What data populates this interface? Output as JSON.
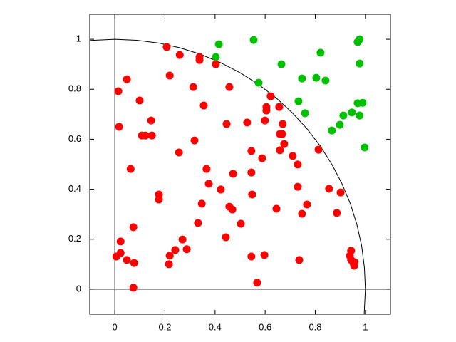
{
  "chart_data": {
    "type": "scatter",
    "xlim": [
      -0.1,
      1.1
    ],
    "ylim": [
      -0.1,
      1.1
    ],
    "xticks": [
      0,
      0.2,
      0.4,
      0.6,
      0.8,
      1
    ],
    "yticks": [
      0,
      0.2,
      0.4,
      0.6,
      0.8,
      1
    ],
    "zeroaxis": true,
    "curve": {
      "color": "#000000",
      "x": [
        -0.1,
        0,
        0.087,
        0.174,
        0.259,
        0.342,
        0.423,
        0.5,
        0.574,
        0.643,
        0.707,
        0.766,
        0.819,
        0.866,
        0.906,
        0.94,
        0.966,
        0.985,
        0.996,
        1,
        0.995
      ],
      "values": [
        0.995,
        1,
        0.996,
        0.985,
        0.966,
        0.94,
        0.906,
        0.866,
        0.819,
        0.766,
        0.707,
        0.643,
        0.574,
        0.5,
        0.423,
        0.342,
        0.259,
        0.174,
        0.087,
        0,
        -0.1
      ]
    },
    "series": [
      {
        "color": "#00c000",
        "x": [
          0.415,
          0.554,
          0.403,
          0.574,
          0.665,
          0.821,
          0.804,
          0.841,
          0.747,
          0.733,
          0.759,
          0.866,
          0.898,
          0.912,
          0.946,
          0.977,
          0.969,
          0.977,
          0.969,
          0.989,
          0.977,
          0.997
        ],
        "values": [
          0.98,
          0.997,
          0.929,
          0.826,
          0.9,
          0.946,
          0.846,
          0.835,
          0.843,
          0.752,
          0.704,
          0.635,
          0.658,
          0.695,
          0.707,
          1.0,
          0.989,
          0.903,
          0.744,
          0.746,
          0.695,
          0.567
        ]
      },
      {
        "color": "#ff0000",
        "x": [
          0.207,
          0.259,
          0.338,
          0.338,
          0.403,
          0.048,
          0.219,
          0.014,
          0.099,
          0.313,
          0.457,
          0.355,
          0.145,
          0.017,
          0.108,
          0.122,
          0.148,
          0.318,
          0.446,
          0.528,
          0.605,
          0.622,
          0.656,
          0.605,
          0.599,
          0.67,
          0.668,
          0.659,
          0.676,
          0.659,
          0.545,
          0.813,
          0.256,
          0.588,
          0.71,
          0.73,
          0.063,
          0.366,
          0.472,
          0.545,
          0.375,
          0.423,
          0.73,
          0.176,
          0.176,
          0.548,
          0.855,
          0.901,
          0.347,
          0.457,
          0.469,
          0.645,
          0.767,
          0.747,
          0.886,
          0.074,
          0.332,
          0.503,
          0.443,
          0.023,
          0.27,
          0.023,
          0.006,
          0.048,
          0.077,
          0.287,
          0.241,
          0.219,
          0.216,
          0.545,
          0.597,
          0.736,
          0.943,
          0.938,
          0.943,
          0.952,
          0.955,
          0.957,
          0.074,
          0.568
        ],
        "values": [
          0.969,
          0.937,
          0.929,
          0.917,
          0.9,
          0.84,
          0.855,
          0.792,
          0.755,
          0.809,
          0.809,
          0.735,
          0.675,
          0.65,
          0.615,
          0.615,
          0.615,
          0.595,
          0.661,
          0.667,
          0.729,
          0.772,
          0.729,
          0.715,
          0.675,
          0.661,
          0.621,
          0.621,
          0.581,
          0.556,
          0.553,
          0.558,
          0.547,
          0.524,
          0.533,
          0.499,
          0.481,
          0.481,
          0.462,
          0.467,
          0.422,
          0.399,
          0.41,
          0.379,
          0.359,
          0.379,
          0.402,
          0.387,
          0.342,
          0.33,
          0.319,
          0.322,
          0.339,
          0.302,
          0.305,
          0.248,
          0.265,
          0.262,
          0.208,
          0.191,
          0.199,
          0.145,
          0.131,
          0.117,
          0.105,
          0.16,
          0.157,
          0.134,
          0.1,
          0.131,
          0.137,
          0.117,
          0.154,
          0.134,
          0.117,
          0.105,
          0.094,
          0.108,
          0.006,
          0.026
        ]
      }
    ]
  }
}
